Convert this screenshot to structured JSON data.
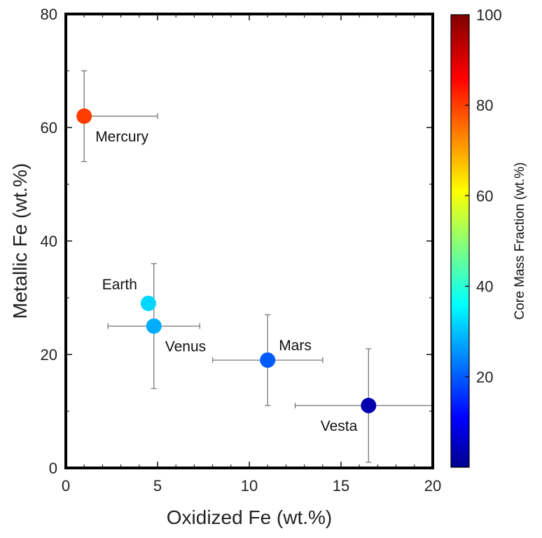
{
  "chart_data": {
    "type": "scatter",
    "xlabel": "Oxidized Fe (wt.%)",
    "ylabel": "Metallic Fe (wt.%)",
    "xlim": [
      0,
      20
    ],
    "ylim": [
      0,
      80
    ],
    "xticks": [
      0,
      5,
      10,
      15,
      20
    ],
    "yticks": [
      0,
      20,
      40,
      60,
      80
    ],
    "grid": false,
    "points": [
      {
        "name": "Mercury",
        "x": 1.0,
        "y": 62,
        "xerr": [
          1.0,
          5.0
        ],
        "yerr": [
          54,
          70
        ],
        "core_mass_fraction": 80
      },
      {
        "name": "Earth",
        "x": 4.5,
        "y": 29,
        "xerr": null,
        "yerr": null,
        "core_mass_fraction": 32
      },
      {
        "name": "Venus",
        "x": 4.8,
        "y": 25,
        "xerr": [
          2.3,
          7.3
        ],
        "yerr": [
          14,
          36
        ],
        "core_mass_fraction": 28
      },
      {
        "name": "Mars",
        "x": 11.0,
        "y": 19,
        "xerr": [
          8.0,
          14.0
        ],
        "yerr": [
          11,
          27
        ],
        "core_mass_fraction": 20
      },
      {
        "name": "Vesta",
        "x": 16.5,
        "y": 11,
        "xerr": [
          12.5,
          20
        ],
        "yerr": [
          1,
          21
        ],
        "core_mass_fraction": 3
      }
    ],
    "colorbar": {
      "title": "Core Mass Fraction (wt.%)",
      "range": [
        0,
        100
      ],
      "ticks": [
        20,
        40,
        60,
        80,
        100
      ],
      "colormap": "jet"
    }
  }
}
